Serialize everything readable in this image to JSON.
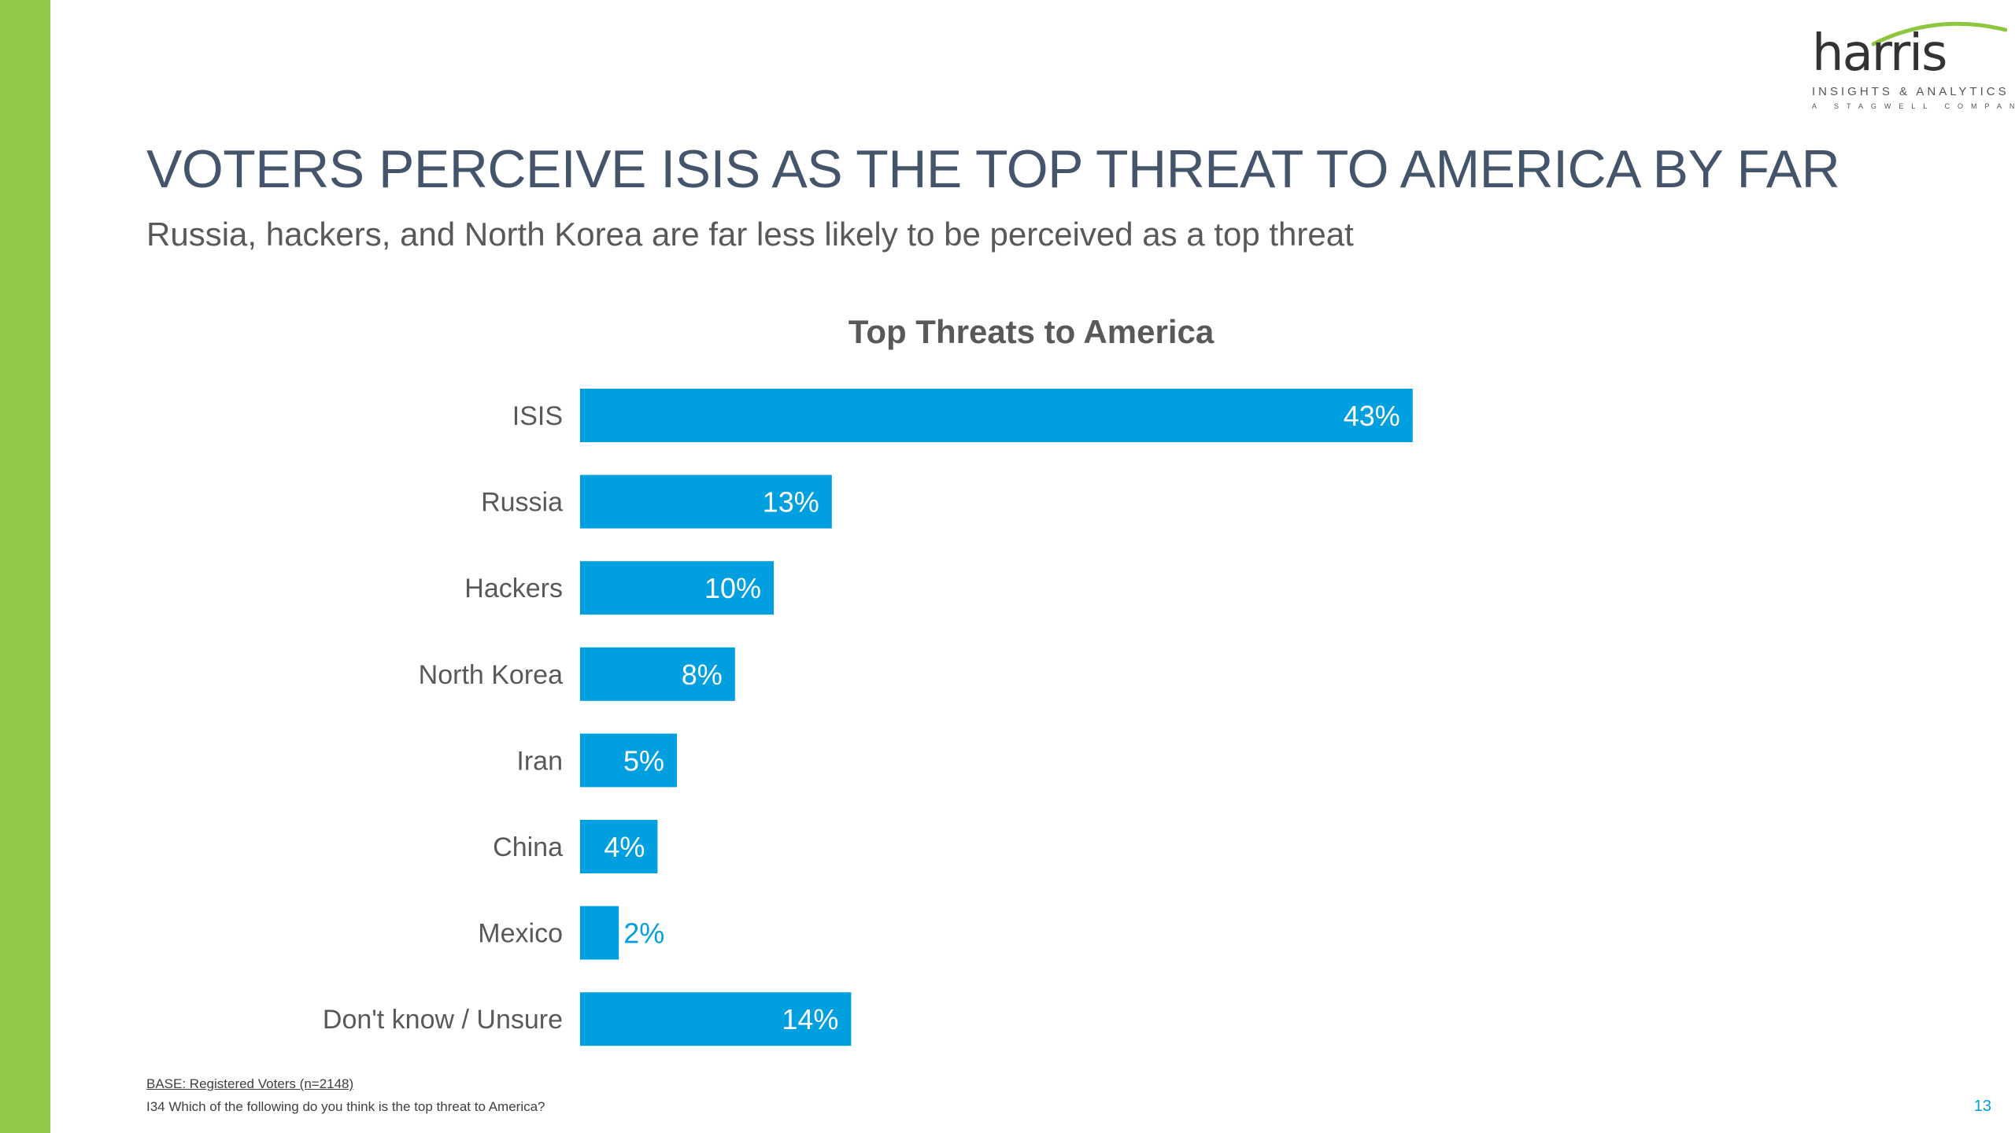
{
  "slide": {
    "title": "VOTERS PERCEIVE ISIS AS THE TOP THREAT TO AMERICA BY FAR",
    "subtitle": "Russia, hackers, and North Korea are far less likely to be perceived as a top threat",
    "accent_bar_color": "#92c847",
    "page_number": "13"
  },
  "logo": {
    "word": "harris",
    "tagline": "INSIGHTS & ANALYTICS",
    "subtag": "A STAGWELL COMPANY",
    "swoosh_color": "#8dc63f"
  },
  "chart_data": {
    "type": "bar",
    "orientation": "horizontal",
    "title": "Top Threats to America",
    "categories": [
      "ISIS",
      "Russia",
      "Hackers",
      "North Korea",
      "Iran",
      "China",
      "Mexico",
      "Don't know / Unsure"
    ],
    "values": [
      43,
      13,
      10,
      8,
      5,
      4,
      2,
      14
    ],
    "value_labels": [
      "43%",
      "13%",
      "10%",
      "8%",
      "5%",
      "4%",
      "2%",
      "14%"
    ],
    "unit": "%",
    "bar_color": "#009fdf",
    "grid": false,
    "legend": "none"
  },
  "footnotes": {
    "base": "BASE: Registered Voters (n=2148)",
    "question": "I34 Which of the following do you think is the top threat to America?"
  }
}
